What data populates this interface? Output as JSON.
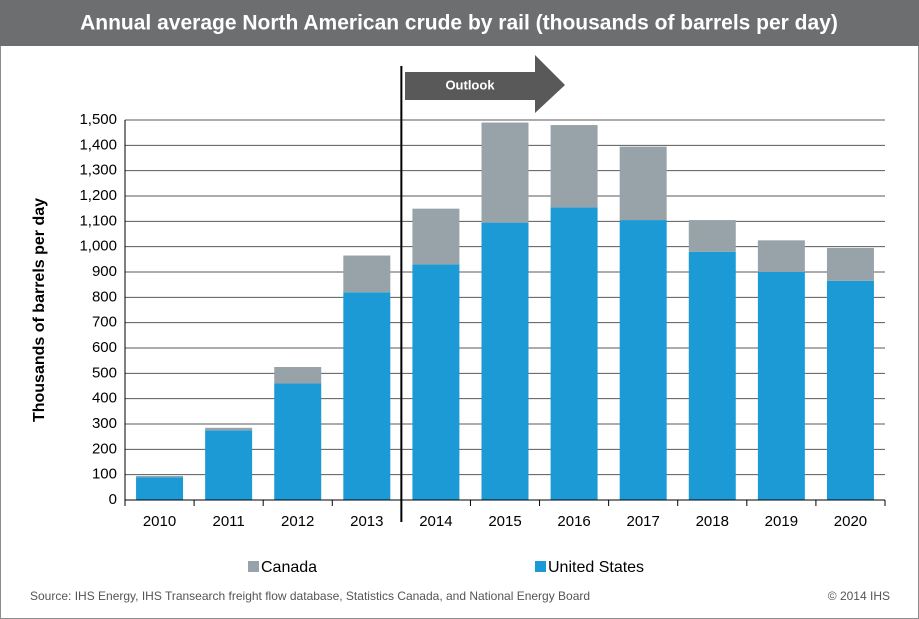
{
  "chart_data": {
    "type": "stacked_bar",
    "title": "Annual average North American crude by rail (thousands of barrels per day)",
    "ylabel": "Thousands of barrels per day",
    "annotation": "Outlook",
    "source": "Source: IHS Energy, IHS Transearch freight flow database, Statistics Canada, and National Energy Board",
    "copyright": "© 2014 IHS",
    "categories": [
      "2010",
      "2011",
      "2012",
      "2013",
      "2014",
      "2015",
      "2016",
      "2017",
      "2018",
      "2019",
      "2020"
    ],
    "series": [
      {
        "name": "United States",
        "color": "#1b9ad6",
        "values": [
          90,
          275,
          460,
          820,
          930,
          1095,
          1155,
          1105,
          980,
          900,
          865
        ]
      },
      {
        "name": "Canada",
        "color": "#98a3a9",
        "values": [
          5,
          10,
          65,
          145,
          220,
          395,
          325,
          290,
          125,
          125,
          130
        ]
      }
    ],
    "ylim": [
      0,
      1500
    ],
    "yticks": [
      0,
      100,
      200,
      300,
      400,
      500,
      600,
      700,
      800,
      900,
      {
        "value": 1000,
        "label": "1,000"
      },
      {
        "value": 1100,
        "label": "1,100"
      },
      {
        "value": 1200,
        "label": "1,200"
      },
      {
        "value": 1300,
        "label": "1,300"
      },
      {
        "value": 1400,
        "label": "1,400"
      },
      {
        "value": 1500,
        "label": "1,500"
      }
    ],
    "grid": true
  }
}
